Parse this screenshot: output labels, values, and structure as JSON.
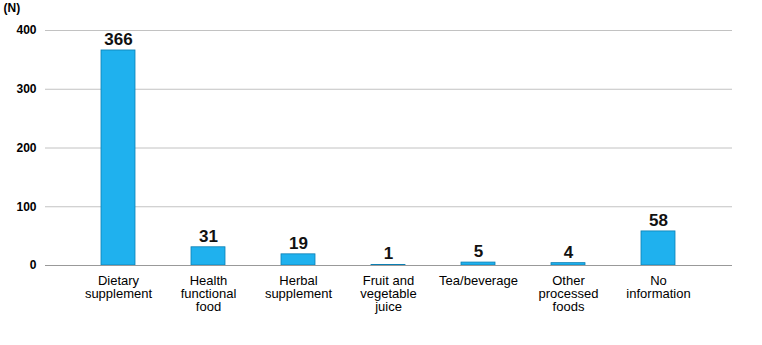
{
  "chart_data": {
    "type": "bar",
    "y_label": "(N)",
    "categories": [
      "Dietary supplement",
      "Health functional food",
      "Herbal supplement",
      "Fruit and vegetable juice",
      "Tea/beverage",
      "Other processed foods",
      "No information"
    ],
    "values": [
      366,
      31,
      19,
      1,
      5,
      4,
      58
    ],
    "color": "#1fb1ee",
    "ylim": [
      0,
      400
    ],
    "yticks": [
      0,
      100,
      200,
      300,
      400
    ],
    "grid": true,
    "data_labels": true
  }
}
